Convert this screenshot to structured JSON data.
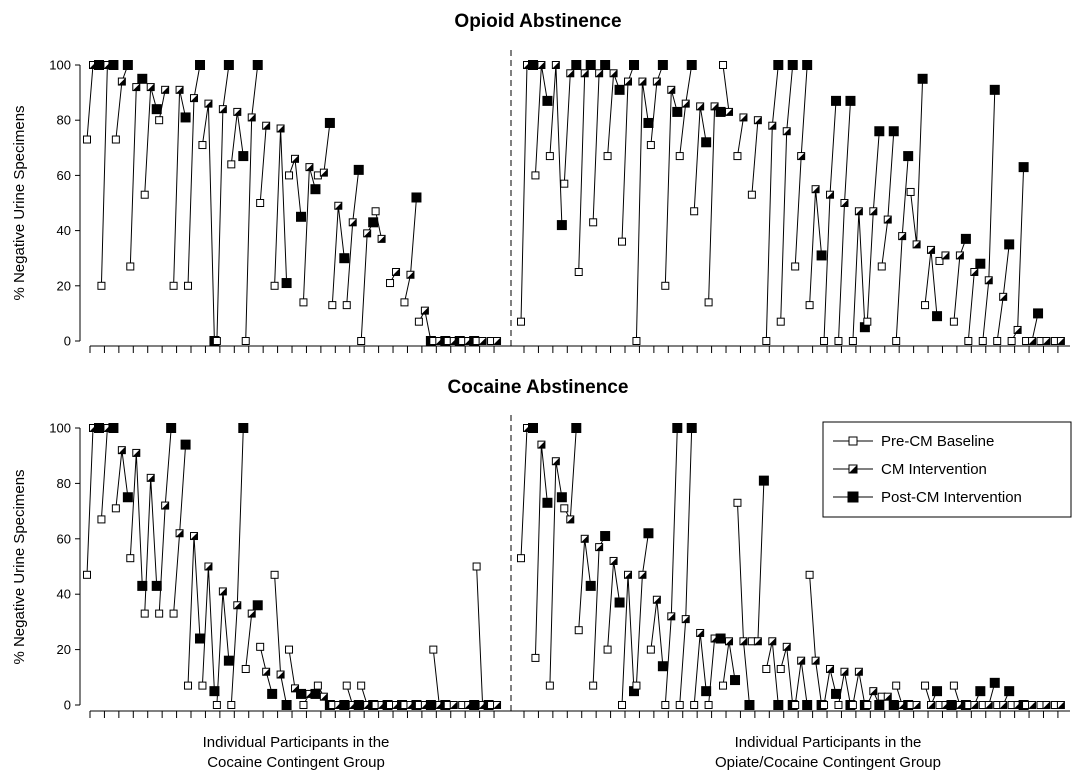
{
  "figure": {
    "ylabel": "% Negative Urine Specimens",
    "yticks": [
      0,
      20,
      40,
      60,
      80,
      100
    ],
    "group_labels": [
      [
        "Individual Participants in the",
        "Cocaine Contingent Group"
      ],
      [
        "Individual Participants in the",
        "Opiate/Cocaine Contingent Group"
      ]
    ],
    "legend": [
      "Pre-CM Baseline",
      "CM Intervention",
      "Post-CM Intervention"
    ]
  },
  "chart_data": [
    {
      "type": "line",
      "title": "Opioid Abstinence",
      "ylabel": "% Negative Urine Specimens",
      "ylim": [
        0,
        100
      ],
      "series_names": [
        "Pre-CM Baseline",
        "CM Intervention",
        "Post-CM Intervention"
      ],
      "groups": [
        {
          "name": "Cocaine Contingent Group",
          "xlabel": "Individual Participants in the Cocaine Contingent Group",
          "participants": [
            [
              73,
              100,
              100
            ],
            [
              20,
              100,
              100
            ],
            [
              73,
              94,
              100
            ],
            [
              27,
              92,
              95
            ],
            [
              53,
              92,
              84
            ],
            [
              80,
              91,
              null
            ],
            [
              20,
              91,
              81
            ],
            [
              20,
              88,
              100
            ],
            [
              71,
              86,
              0
            ],
            [
              0,
              84,
              100
            ],
            [
              64,
              83,
              67
            ],
            [
              0,
              81,
              100
            ],
            [
              50,
              78,
              null
            ],
            [
              20,
              77,
              21
            ],
            [
              60,
              66,
              45
            ],
            [
              14,
              63,
              55
            ],
            [
              60,
              61,
              79
            ],
            [
              13,
              49,
              30
            ],
            [
              13,
              43,
              62
            ],
            [
              0,
              39,
              43
            ],
            [
              47,
              37,
              null
            ],
            [
              21,
              25,
              null
            ],
            [
              14,
              24,
              52
            ],
            [
              7,
              11,
              0
            ],
            [
              0,
              0,
              0
            ],
            [
              0,
              0,
              0
            ],
            [
              0,
              0,
              0
            ],
            [
              0,
              0,
              null
            ],
            [
              0,
              0,
              null
            ]
          ]
        },
        {
          "name": "Opiate/Cocaine Contingent Group",
          "xlabel": "Individual Participants in the Opiate/Cocaine Contingent Group",
          "participants": [
            [
              7,
              100,
              100
            ],
            [
              60,
              100,
              87
            ],
            [
              67,
              100,
              42
            ],
            [
              57,
              97,
              100
            ],
            [
              25,
              97,
              100
            ],
            [
              43,
              97,
              100
            ],
            [
              67,
              97,
              91
            ],
            [
              36,
              94,
              100
            ],
            [
              0,
              94,
              79
            ],
            [
              71,
              94,
              100
            ],
            [
              20,
              91,
              83
            ],
            [
              67,
              86,
              100
            ],
            [
              47,
              85,
              72
            ],
            [
              14,
              85,
              83
            ],
            [
              100,
              83,
              null
            ],
            [
              67,
              81,
              null
            ],
            [
              53,
              80,
              null
            ],
            [
              0,
              78,
              100
            ],
            [
              7,
              76,
              100
            ],
            [
              27,
              67,
              100
            ],
            [
              13,
              55,
              31
            ],
            [
              0,
              53,
              87
            ],
            [
              0,
              50,
              87
            ],
            [
              0,
              47,
              5
            ],
            [
              7,
              47,
              76
            ],
            [
              27,
              44,
              76
            ],
            [
              0,
              38,
              67
            ],
            [
              54,
              35,
              95
            ],
            [
              13,
              33,
              9
            ],
            [
              29,
              31,
              null
            ],
            [
              7,
              31,
              37
            ],
            [
              0,
              25,
              28
            ],
            [
              0,
              22,
              91
            ],
            [
              0,
              16,
              35
            ],
            [
              0,
              4,
              63
            ],
            [
              0,
              0,
              10
            ],
            [
              0,
              0,
              null
            ],
            [
              0,
              0,
              null
            ]
          ]
        }
      ]
    },
    {
      "type": "line",
      "title": "Cocaine Abstinence",
      "ylabel": "% Negative Urine Specimens",
      "ylim": [
        0,
        100
      ],
      "series_names": [
        "Pre-CM Baseline",
        "CM Intervention",
        "Post-CM Intervention"
      ],
      "groups": [
        {
          "name": "Cocaine Contingent Group",
          "xlabel": "Individual Participants in the Cocaine Contingent Group",
          "participants": [
            [
              47,
              100,
              100
            ],
            [
              67,
              100,
              100
            ],
            [
              71,
              92,
              75
            ],
            [
              53,
              91,
              43
            ],
            [
              33,
              82,
              43
            ],
            [
              33,
              72,
              100
            ],
            [
              33,
              62,
              94
            ],
            [
              7,
              61,
              24
            ],
            [
              7,
              50,
              5
            ],
            [
              0,
              41,
              16
            ],
            [
              0,
              36,
              100
            ],
            [
              13,
              33,
              36
            ],
            [
              21,
              12,
              4
            ],
            [
              47,
              11,
              0
            ],
            [
              20,
              6,
              4
            ],
            [
              0,
              4,
              4
            ],
            [
              7,
              3,
              0
            ],
            [
              0,
              0,
              0
            ],
            [
              7,
              0,
              0
            ],
            [
              7,
              0,
              0
            ],
            [
              0,
              0,
              0
            ],
            [
              0,
              0,
              0
            ],
            [
              0,
              0,
              0
            ],
            [
              0,
              0,
              0
            ],
            [
              20,
              0,
              0
            ],
            [
              0,
              0,
              null
            ],
            [
              0,
              0,
              0
            ],
            [
              50,
              0,
              0
            ],
            [
              0,
              0,
              null
            ]
          ]
        },
        {
          "name": "Opiate/Cocaine Contingent Group",
          "xlabel": "Individual Participants in the Opiate/Cocaine Contingent Group",
          "participants": [
            [
              53,
              100,
              100
            ],
            [
              17,
              94,
              73
            ],
            [
              7,
              88,
              75
            ],
            [
              71,
              67,
              100
            ],
            [
              27,
              60,
              43
            ],
            [
              7,
              57,
              61
            ],
            [
              20,
              52,
              37
            ],
            [
              0,
              47,
              5
            ],
            [
              7,
              47,
              62
            ],
            [
              20,
              38,
              14
            ],
            [
              0,
              32,
              100
            ],
            [
              0,
              31,
              100
            ],
            [
              0,
              26,
              5
            ],
            [
              0,
              24,
              24
            ],
            [
              7,
              23,
              9
            ],
            [
              73,
              23,
              0
            ],
            [
              23,
              23,
              81
            ],
            [
              13,
              23,
              0
            ],
            [
              13,
              21,
              0
            ],
            [
              0,
              16,
              0
            ],
            [
              47,
              16,
              0
            ],
            [
              0,
              13,
              4
            ],
            [
              0,
              12,
              0
            ],
            [
              0,
              12,
              0
            ],
            [
              0,
              5,
              0
            ],
            [
              3,
              3,
              0
            ],
            [
              7,
              0,
              0
            ],
            [
              0,
              0,
              null
            ],
            [
              7,
              0,
              5
            ],
            [
              0,
              0,
              0
            ],
            [
              7,
              0,
              0
            ],
            [
              0,
              0,
              5
            ],
            [
              0,
              0,
              8
            ],
            [
              0,
              0,
              5
            ],
            [
              0,
              0,
              0
            ],
            [
              0,
              0,
              null
            ],
            [
              0,
              0,
              null
            ],
            [
              0,
              0,
              null
            ]
          ]
        }
      ]
    }
  ]
}
